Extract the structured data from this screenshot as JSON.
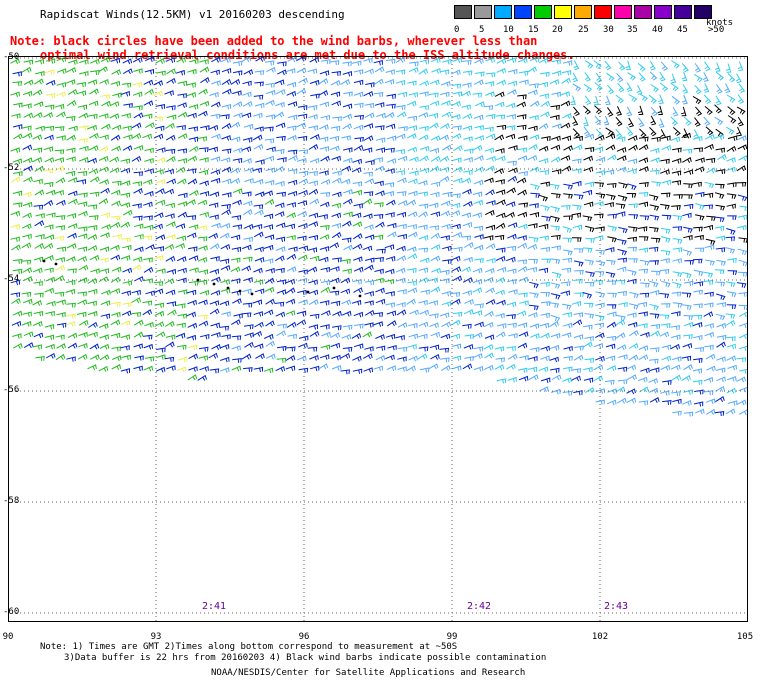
{
  "header": {
    "title": "Rapidscat Winds(12.5KM) v1 20160203 descending",
    "note_line1": "Note: black circles have been added to the wind barbs, wherever less than",
    "note_line2": "optimal wind retrieval conditions are met due to the ISS altitude changes."
  },
  "legend": {
    "ticks": [
      "0",
      "5",
      "10",
      "15",
      "20",
      "25",
      "30",
      "35",
      "40",
      "45",
      ">50"
    ],
    "unit": "knots",
    "colors": [
      "#555555",
      "#999999",
      "#00aaff",
      "#0044ff",
      "#00cc00",
      "#ffff00",
      "#ffaa00",
      "#ff0000",
      "#ff00aa",
      "#aa00aa",
      "#8800cc",
      "#440099",
      "#220066"
    ]
  },
  "map": {
    "lat_labels": [
      "-50",
      "-52",
      "-54",
      "-56",
      "-58",
      "-60"
    ],
    "lon_labels": [
      "90",
      "93",
      "96",
      "99",
      "102",
      "105"
    ],
    "time_labels": [
      "2:41",
      "2:42",
      "2:43"
    ],
    "wind_colors": {
      "cyan": "#33ccee",
      "light_blue": "#55aaff",
      "blue": "#0022cc",
      "green": "#22bb22",
      "yellow": "#eeee55",
      "black": "#000000"
    }
  },
  "footer": {
    "line1": "Note: 1) Times are GMT 2)Times along bottom correspond to measurement at ~50S",
    "line2": "3)Data buffer is 22 hrs from 20160203 4) Black wind barbs indicate possible contamination",
    "credit": "NOAA/NESDIS/Center for Satellite Applications and Research"
  }
}
